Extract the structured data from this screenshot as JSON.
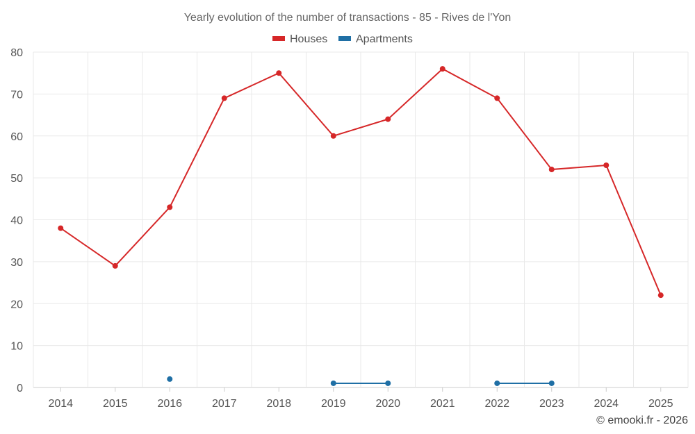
{
  "chart_data": {
    "type": "line",
    "title": "Yearly evolution of the number of transactions - 85 - Rives de l'Yon",
    "categories": [
      "2014",
      "2015",
      "2016",
      "2017",
      "2018",
      "2019",
      "2020",
      "2021",
      "2022",
      "2023",
      "2024",
      "2025"
    ],
    "series": [
      {
        "name": "Houses",
        "color": "#d62728",
        "values": [
          38,
          29,
          43,
          69,
          75,
          60,
          64,
          76,
          69,
          52,
          53,
          22
        ]
      },
      {
        "name": "Apartments",
        "color": "#1f6fa5",
        "values": [
          null,
          null,
          2,
          null,
          null,
          1,
          1,
          null,
          1,
          1,
          null,
          null
        ]
      }
    ],
    "ylim": [
      0,
      80
    ],
    "yticks": [
      0,
      10,
      20,
      30,
      40,
      50,
      60,
      70,
      80
    ],
    "xlabel": "",
    "ylabel": "",
    "legend": "top-center",
    "grid": true
  },
  "credit": "© emooki.fr - 2026"
}
